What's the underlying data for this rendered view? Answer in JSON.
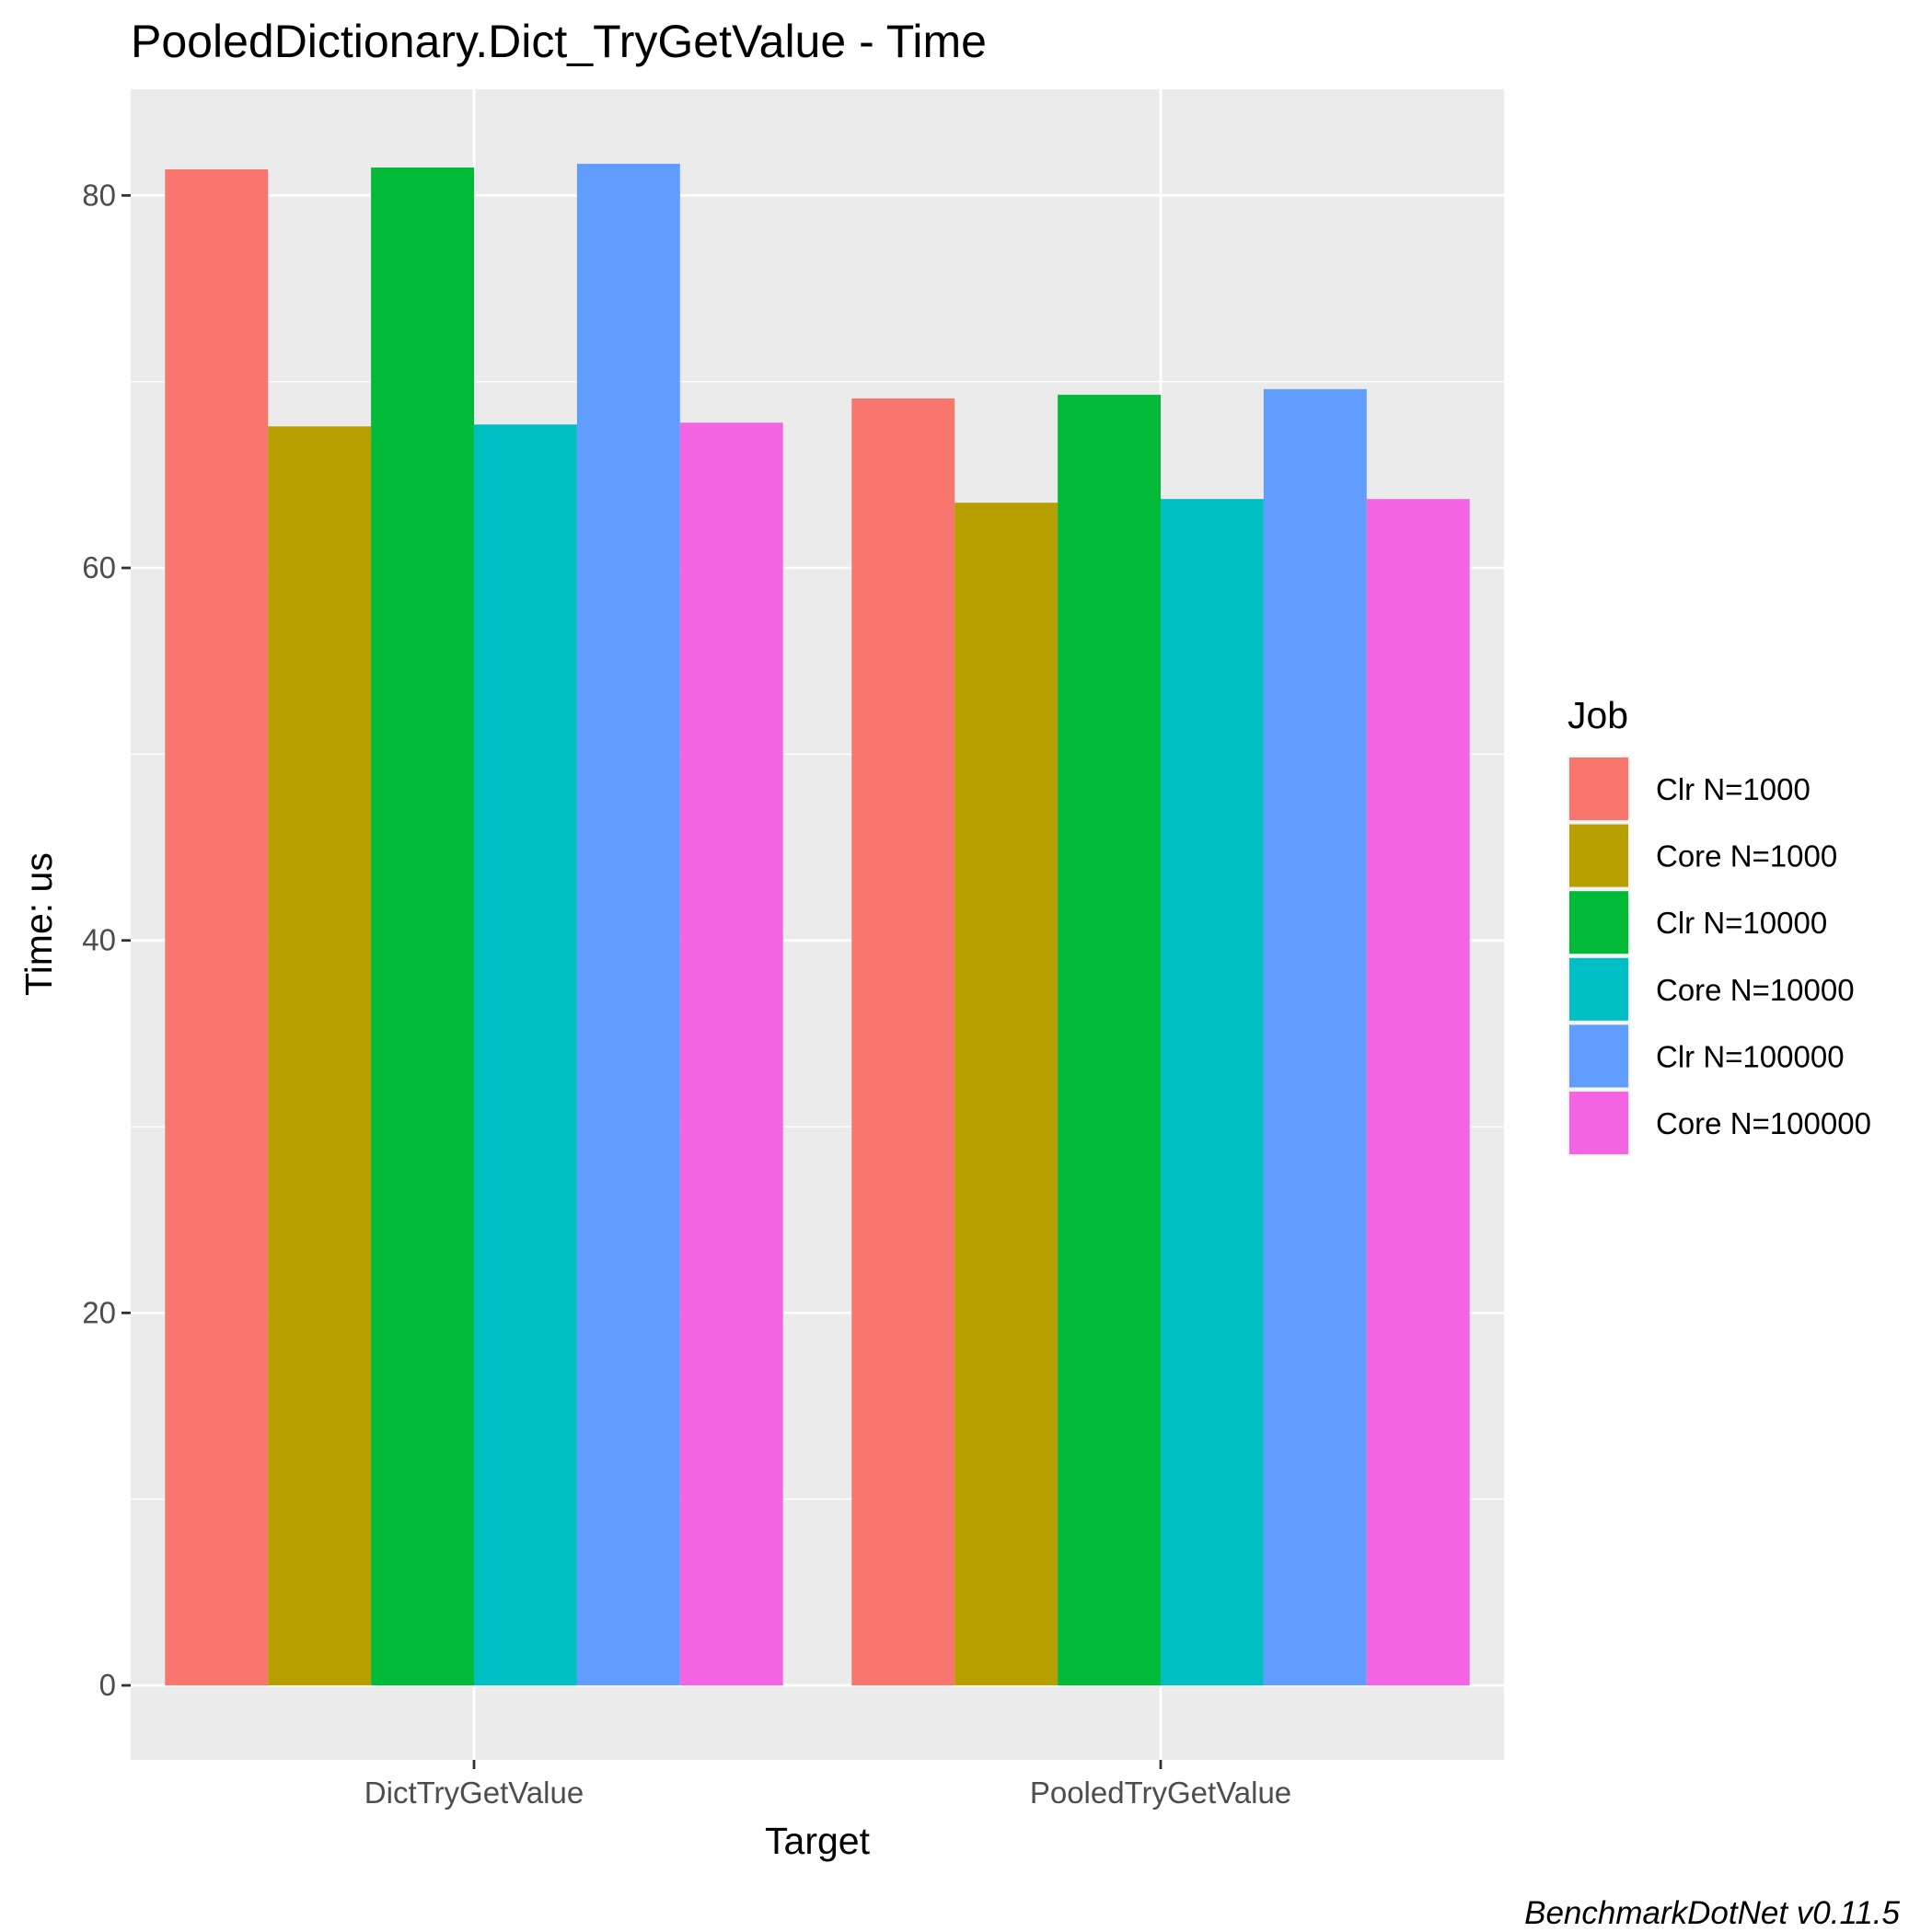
{
  "chart_data": {
    "type": "bar",
    "title": "PooledDictionary.Dict_TryGetValue - Time",
    "xlabel": "Target",
    "ylabel": "Time: us",
    "categories": [
      "DictTryGetValue",
      "PooledTryGetValue"
    ],
    "series": [
      {
        "name": "Clr N=1000",
        "color": "#F8766D",
        "values": [
          81.4,
          69.1
        ]
      },
      {
        "name": "Core N=1000",
        "color": "#B79F00",
        "values": [
          67.6,
          63.5
        ]
      },
      {
        "name": "Clr N=10000",
        "color": "#00BA38",
        "values": [
          81.5,
          69.3
        ]
      },
      {
        "name": "Core N=10000",
        "color": "#00BFC4",
        "values": [
          67.7,
          63.7
        ]
      },
      {
        "name": "Clr N=100000",
        "color": "#619CFF",
        "values": [
          81.7,
          69.6
        ]
      },
      {
        "name": "Core N=100000",
        "color": "#F564E3",
        "values": [
          67.8,
          63.7
        ]
      }
    ],
    "y_ticks": [
      "0",
      "20",
      "40",
      "60",
      "80"
    ],
    "ylim": [
      -4,
      85.7
    ],
    "grid": true,
    "legend": {
      "title": "Job",
      "placement": "right"
    },
    "caption": "BenchmarkDotNet v0.11.5"
  }
}
